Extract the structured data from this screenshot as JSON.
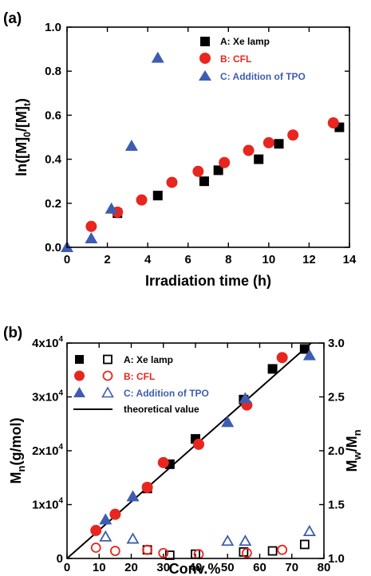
{
  "chart_data": [
    {
      "type": "scatter",
      "panel_label": "(a)",
      "xlabel": "Irradiation time (h)",
      "ylabel_parts": {
        "pre": "ln([M]",
        "sub1": "0",
        "mid": "/[M]",
        "sub2": "t",
        "post": ")"
      },
      "xlim": [
        0,
        14
      ],
      "ylim": [
        0,
        1.0
      ],
      "xticks": [
        0,
        2,
        4,
        6,
        8,
        10,
        12,
        14
      ],
      "yticks": [
        0.0,
        0.2,
        0.4,
        0.6,
        0.8,
        1.0
      ],
      "ytick_labels": [
        "0.0",
        "0.2",
        "0.4",
        "0.6",
        "0.8",
        "1.0"
      ],
      "legend_position": "top-right",
      "series": [
        {
          "name": "A: Xe lamp",
          "marker": "square",
          "color": "#000000",
          "points": [
            [
              2.5,
              0.155
            ],
            [
              4.5,
              0.235
            ],
            [
              6.8,
              0.3
            ],
            [
              7.5,
              0.35
            ],
            [
              9.5,
              0.4
            ],
            [
              10.5,
              0.47
            ],
            [
              13.5,
              0.545
            ]
          ]
        },
        {
          "name": "B: CFL",
          "marker": "circle",
          "color": "#e8261f",
          "points": [
            [
              1.2,
              0.095
            ],
            [
              2.5,
              0.16
            ],
            [
              3.7,
              0.215
            ],
            [
              5.2,
              0.295
            ],
            [
              6.5,
              0.345
            ],
            [
              7.8,
              0.385
            ],
            [
              9.0,
              0.44
            ],
            [
              10.0,
              0.475
            ],
            [
              11.2,
              0.51
            ],
            [
              13.2,
              0.565
            ]
          ]
        },
        {
          "name": "C: Addition of TPO",
          "marker": "triangle",
          "color": "#3e5db0",
          "points": [
            [
              0.0,
              0.0
            ],
            [
              1.2,
              0.04
            ],
            [
              2.2,
              0.175
            ],
            [
              3.2,
              0.46
            ],
            [
              4.5,
              0.86
            ]
          ]
        }
      ]
    },
    {
      "type": "scatter",
      "panel_label": "(b)",
      "xlabel": "Conv.%",
      "ylabel_left_parts": {
        "pre": "M",
        "sub": "n",
        "post": "(g/mol)"
      },
      "ylabel_right_parts": {
        "pre": "M",
        "sub1": "w",
        "mid": "/M",
        "sub2": "n"
      },
      "xlim": [
        0,
        80
      ],
      "ylim": [
        0,
        40000
      ],
      "y2lim": [
        1.0,
        3.0
      ],
      "xticks": [
        0,
        10,
        20,
        30,
        40,
        50,
        60,
        70,
        80
      ],
      "yticks": [
        0,
        10000,
        20000,
        30000,
        40000
      ],
      "ytick_labels": [
        {
          "base": "0",
          "exp": ""
        },
        {
          "base": "1x10",
          "exp": "4"
        },
        {
          "base": "2x10",
          "exp": "4"
        },
        {
          "base": "3x10",
          "exp": "4"
        },
        {
          "base": "4x10",
          "exp": "4"
        }
      ],
      "y2ticks": [
        1.0,
        1.5,
        2.0,
        2.5,
        3.0
      ],
      "y2tick_labels": [
        "1.0",
        "1.5",
        "2.0",
        "2.5",
        "3.0"
      ],
      "legend_position": "top-left",
      "legend_labels": [
        "A: Xe lamp",
        "B: CFL",
        "C: Addition of TPO",
        "theoretical value"
      ],
      "theoretical_line": {
        "name": "theoretical value",
        "points": [
          [
            0,
            0
          ],
          [
            76,
            40000
          ]
        ]
      },
      "series": [
        {
          "name": "A: Xe lamp",
          "axis": "left",
          "marker": "square",
          "filled": true,
          "color": "#000000",
          "points": [
            [
              25,
              13000
            ],
            [
              32,
              17500
            ],
            [
              40,
              22200
            ],
            [
              55,
              29500
            ],
            [
              64,
              35200
            ],
            [
              74,
              38900
            ]
          ]
        },
        {
          "name": "A: Xe lamp",
          "axis": "right",
          "marker": "square",
          "filled": false,
          "color": "#000000",
          "points": [
            [
              25,
              1.08
            ],
            [
              32,
              1.03
            ],
            [
              40,
              1.04
            ],
            [
              55,
              1.06
            ],
            [
              64,
              1.07
            ],
            [
              74,
              1.13
            ]
          ]
        },
        {
          "name": "B: CFL",
          "axis": "left",
          "marker": "circle",
          "filled": true,
          "color": "#e8261f",
          "points": [
            [
              9,
              5200
            ],
            [
              15,
              8200
            ],
            [
              25,
              13200
            ],
            [
              30,
              17800
            ],
            [
              41,
              21200
            ],
            [
              56,
              28500
            ],
            [
              67,
              37300
            ]
          ]
        },
        {
          "name": "B: CFL",
          "axis": "right",
          "marker": "circle",
          "filled": false,
          "color": "#e8261f",
          "points": [
            [
              9,
              1.1
            ],
            [
              15,
              1.07
            ],
            [
              25,
              1.08
            ],
            [
              30,
              1.05
            ],
            [
              41,
              1.04
            ],
            [
              56,
              1.05
            ],
            [
              67,
              1.08
            ]
          ]
        },
        {
          "name": "C: Addition of TPO",
          "axis": "left",
          "marker": "triangle",
          "filled": true,
          "color": "#3e5db0",
          "points": [
            [
              12,
              7200
            ],
            [
              20.5,
              11500
            ],
            [
              50,
              25300
            ],
            [
              55.5,
              29700
            ],
            [
              75.5,
              37700
            ]
          ]
        },
        {
          "name": "C: Addition of TPO",
          "axis": "right",
          "marker": "triangle",
          "filled": false,
          "color": "#3e5db0",
          "points": [
            [
              12,
              1.2
            ],
            [
              20.5,
              1.18
            ],
            [
              50,
              1.16
            ],
            [
              55.5,
              1.16
            ],
            [
              75.5,
              1.25
            ]
          ]
        }
      ]
    }
  ]
}
